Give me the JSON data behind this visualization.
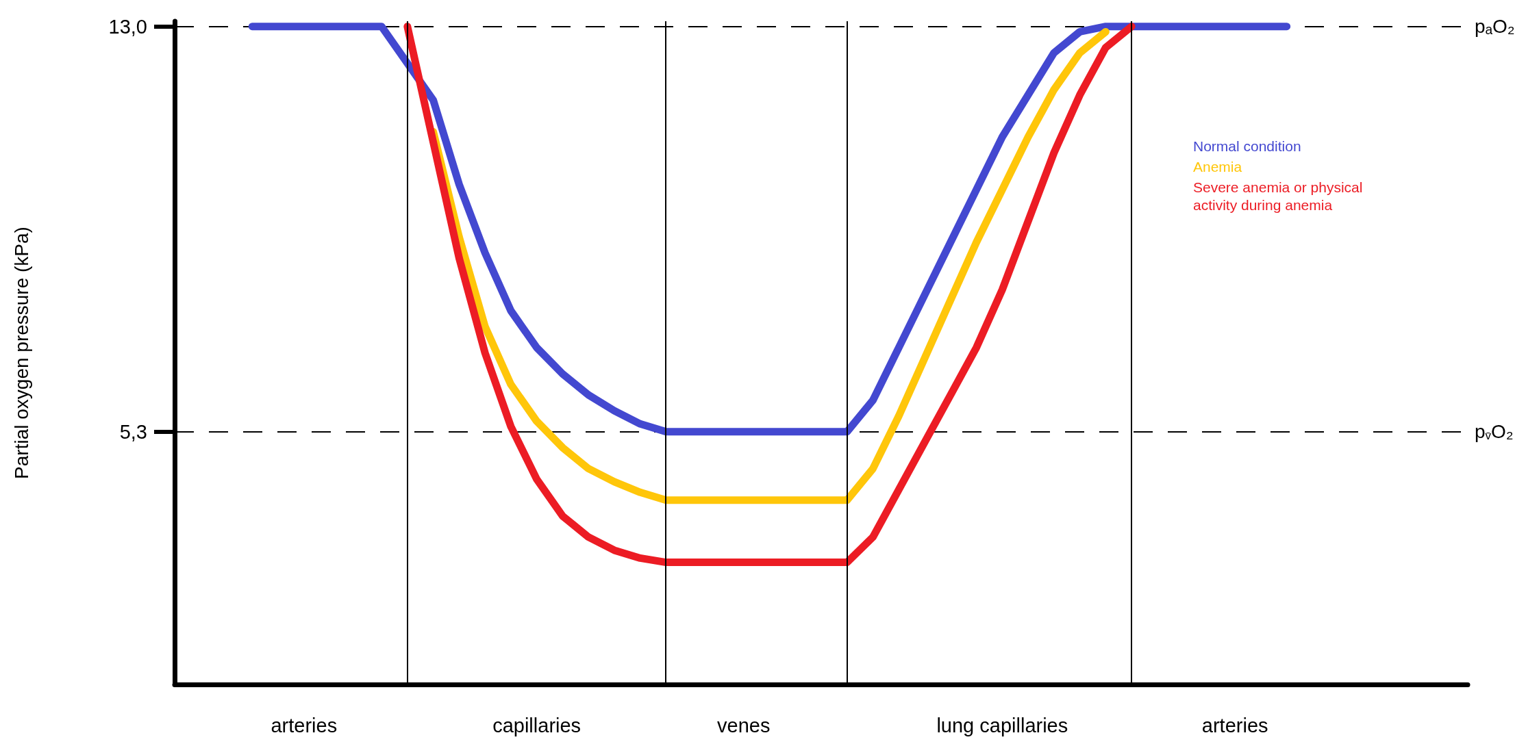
{
  "chart_data": {
    "type": "line",
    "ylabel": "Partial oxygen pressure (kPa)",
    "categories": [
      null,
      null,
      null,
      null,
      null,
      "arteries",
      null,
      null,
      null,
      null,
      null,
      null,
      null,
      null,
      "capillaries",
      null,
      null,
      null,
      null,
      null,
      null,
      null,
      "venes",
      null,
      null,
      null,
      null,
      null,
      null,
      null,
      null,
      null,
      "lung capillaries",
      null,
      null,
      null,
      null,
      null,
      null,
      null,
      null,
      "arteries",
      null,
      null,
      null,
      null,
      null,
      null,
      null,
      null,
      null
    ],
    "ylim": [
      0.5,
      13.1
    ],
    "yticks": [
      {
        "value": 5.3,
        "label": "5,3"
      },
      {
        "value": 13,
        "label": "13,0"
      }
    ],
    "series": [
      {
        "name": "Normal condition",
        "color": "#4348d0",
        "values": [
          null,
          null,
          null,
          13,
          13,
          13,
          13,
          13,
          13,
          null,
          11.6,
          10.0,
          8.7,
          7.6,
          6.9,
          6.4,
          6.0,
          5.7,
          5.45,
          5.3,
          5.3,
          5.3,
          5.3,
          5.3,
          5.3,
          5.3,
          5.3,
          5.9,
          6.9,
          7.9,
          8.9,
          9.9,
          10.9,
          11.7,
          12.5,
          12.9,
          13,
          13,
          13,
          13,
          13,
          13,
          13,
          13,
          null,
          null,
          null,
          null,
          null,
          null,
          null
        ]
      },
      {
        "name": "Anemia",
        "color": "#ffc60a",
        "values": [
          null,
          null,
          null,
          null,
          null,
          null,
          null,
          null,
          null,
          null,
          11.0,
          9.0,
          7.3,
          6.2,
          5.5,
          5.0,
          4.6,
          4.35,
          4.15,
          4.0,
          4.0,
          4.0,
          4.0,
          4.0,
          4.0,
          4.0,
          4.0,
          4.6,
          5.6,
          6.7,
          7.8,
          8.9,
          9.9,
          10.9,
          11.8,
          12.5,
          12.9,
          null,
          null,
          null,
          null,
          null,
          null,
          null,
          null,
          null,
          null,
          null,
          null,
          null,
          null
        ]
      },
      {
        "name": "Severe anemia or physical activity during anemia",
        "color": "#ec1c24",
        "values": [
          null,
          null,
          null,
          null,
          null,
          null,
          null,
          null,
          null,
          13,
          10.8,
          8.6,
          6.8,
          5.4,
          4.4,
          3.7,
          3.3,
          3.05,
          2.9,
          2.82,
          2.82,
          2.82,
          2.82,
          2.82,
          2.82,
          2.82,
          2.82,
          3.3,
          4.2,
          5.1,
          6.0,
          6.9,
          8.0,
          9.3,
          10.6,
          11.7,
          12.6,
          13,
          null,
          null,
          null,
          null,
          null,
          null,
          null,
          null,
          null,
          null,
          null,
          null,
          null
        ]
      }
    ],
    "ref_lines": [
      {
        "axis": "y",
        "value": 13,
        "label": "pₐO₂",
        "line_style": "dashed",
        "color": "#000000"
      },
      {
        "axis": "y",
        "value": 5.3,
        "label": "p$_{v̄}$O₂",
        "line_style": "dashed",
        "color": "#000000"
      }
    ],
    "legend": "top right",
    "marker": "none",
    "line_style": "solid",
    "grid": false
  }
}
